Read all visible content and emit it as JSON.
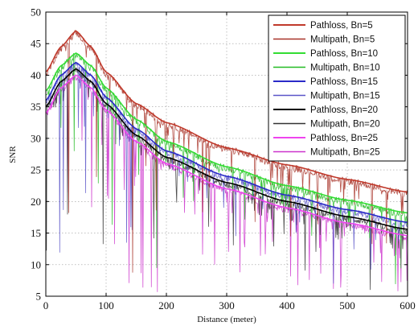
{
  "chart_data": {
    "type": "line",
    "title": "",
    "xlabel": "Distance (meter)",
    "ylabel": "SNR",
    "xlim": [
      0,
      600
    ],
    "ylim": [
      5,
      50
    ],
    "xticks": [
      0,
      100,
      200,
      300,
      400,
      500,
      600
    ],
    "yticks": [
      5,
      10,
      15,
      20,
      25,
      30,
      35,
      40,
      45,
      50
    ],
    "grid": true,
    "legend_position": "top-right",
    "series": [
      {
        "name": "Pathloss, Bn=5",
        "kind": "pathloss",
        "color": "#c0392b",
        "x": [
          0,
          25,
          50,
          75,
          100,
          150,
          200,
          300,
          400,
          500,
          600
        ],
        "y": [
          40.5,
          44.5,
          47.0,
          44.5,
          40.5,
          35.5,
          32.5,
          28.5,
          25.8,
          23.5,
          21.5
        ]
      },
      {
        "name": "Multipath, Bn=5",
        "kind": "multipath",
        "color": "#a83228",
        "x": [
          0,
          25,
          50,
          75,
          100,
          150,
          200,
          300,
          400,
          500,
          600
        ],
        "y": [
          40.5,
          44.5,
          47.0,
          44.5,
          40.5,
          35.5,
          32.5,
          28.5,
          25.8,
          23.5,
          21.5
        ]
      },
      {
        "name": "Pathloss, Bn=10",
        "kind": "pathloss",
        "color": "#33dd33",
        "x": [
          0,
          25,
          50,
          75,
          100,
          150,
          200,
          300,
          400,
          500,
          600
        ],
        "y": [
          37.5,
          41.5,
          43.5,
          41.5,
          38.0,
          33.0,
          29.5,
          25.5,
          22.5,
          20.2,
          18.2
        ]
      },
      {
        "name": "Multipath, Bn=10",
        "kind": "multipath",
        "color": "#22bb22",
        "x": [
          0,
          25,
          50,
          75,
          100,
          150,
          200,
          300,
          400,
          500,
          600
        ],
        "y": [
          37.5,
          41.5,
          43.5,
          41.5,
          38.0,
          33.0,
          29.5,
          25.5,
          22.5,
          20.2,
          18.2
        ]
      },
      {
        "name": "Pathloss, Bn=15",
        "kind": "pathloss",
        "color": "#2a2ac8",
        "x": [
          0,
          25,
          50,
          75,
          100,
          150,
          200,
          300,
          400,
          500,
          600
        ],
        "y": [
          36.0,
          40.0,
          42.0,
          40.0,
          36.5,
          31.5,
          28.0,
          24.0,
          21.0,
          18.7,
          16.7
        ]
      },
      {
        "name": "Multipath, Bn=15",
        "kind": "multipath",
        "color": "#5a55c8",
        "x": [
          0,
          25,
          50,
          75,
          100,
          150,
          200,
          300,
          400,
          500,
          600
        ],
        "y": [
          36.0,
          40.0,
          42.0,
          40.0,
          36.5,
          31.5,
          28.0,
          24.0,
          21.0,
          18.7,
          16.7
        ]
      },
      {
        "name": "Pathloss, Bn=20",
        "kind": "pathloss",
        "color": "#000000",
        "x": [
          0,
          25,
          50,
          75,
          100,
          150,
          200,
          300,
          400,
          500,
          600
        ],
        "y": [
          35.0,
          39.0,
          41.0,
          39.0,
          35.5,
          30.5,
          27.0,
          23.0,
          20.0,
          17.6,
          15.6
        ]
      },
      {
        "name": "Multipath, Bn=20",
        "kind": "multipath",
        "color": "#333333",
        "x": [
          0,
          25,
          50,
          75,
          100,
          150,
          200,
          300,
          400,
          500,
          600
        ],
        "y": [
          35.0,
          39.0,
          41.0,
          39.0,
          35.5,
          30.5,
          27.0,
          23.0,
          20.0,
          17.6,
          15.6
        ]
      },
      {
        "name": "Pathloss, Bn=25",
        "kind": "pathloss",
        "color": "#ee44ee",
        "x": [
          0,
          25,
          50,
          75,
          100,
          150,
          200,
          300,
          400,
          500,
          600
        ],
        "y": [
          34.0,
          38.0,
          40.0,
          38.0,
          34.5,
          29.5,
          26.0,
          22.0,
          19.0,
          16.6,
          14.6
        ]
      },
      {
        "name": "Multipath, Bn=25",
        "kind": "multipath",
        "color": "#cc33cc",
        "x": [
          0,
          25,
          50,
          75,
          100,
          150,
          200,
          300,
          400,
          500,
          600
        ],
        "y": [
          34.0,
          38.0,
          40.0,
          38.0,
          34.5,
          29.5,
          26.0,
          22.0,
          19.0,
          16.6,
          14.6
        ]
      }
    ]
  }
}
